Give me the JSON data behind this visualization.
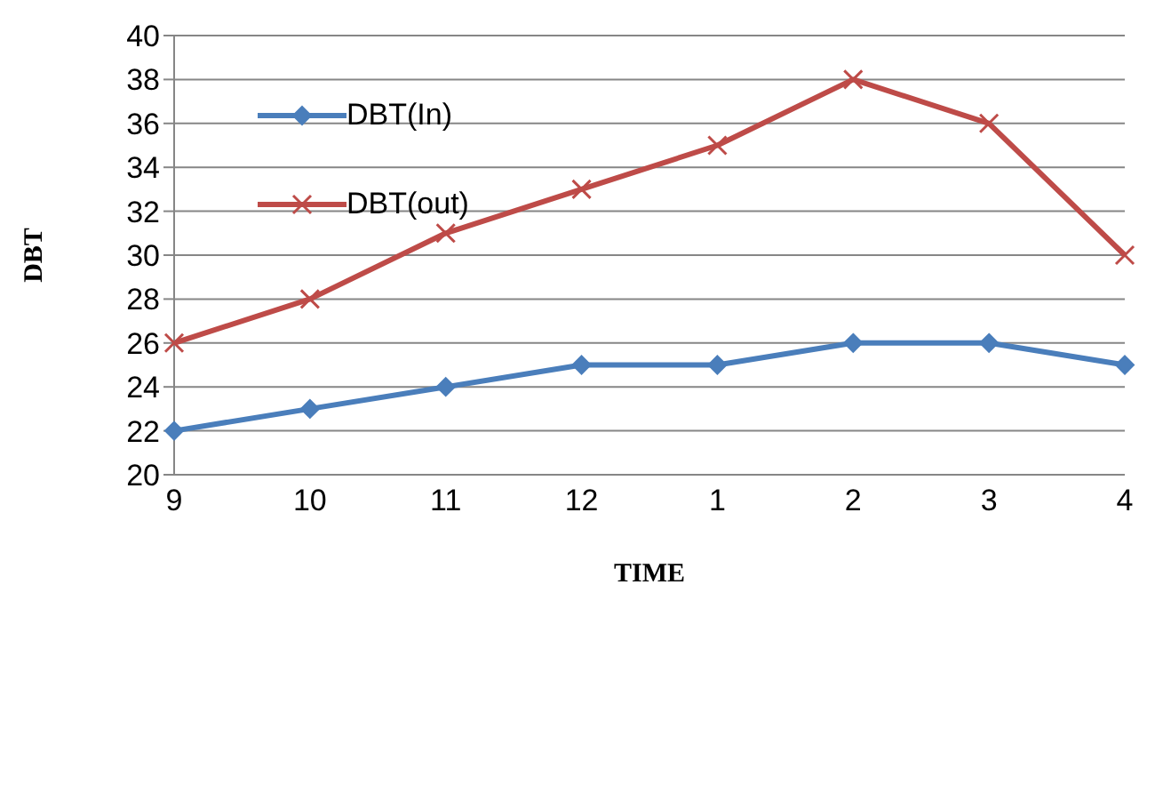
{
  "chart_data": {
    "type": "line",
    "xlabel": "TIME",
    "ylabel": "DBT",
    "categories": [
      "9",
      "10",
      "11",
      "12",
      "1",
      "2",
      "3",
      "4"
    ],
    "series": [
      {
        "name": "DBT(In)",
        "color": "#4a7ebb",
        "marker": "diamond",
        "values": [
          22,
          23,
          24,
          25,
          25,
          26,
          26,
          25
        ]
      },
      {
        "name": "DBT(out)",
        "color": "#be4b48",
        "marker": "cross",
        "values": [
          26,
          28,
          31,
          33,
          35,
          38,
          36,
          30
        ]
      }
    ],
    "ylim": [
      20,
      40
    ],
    "yticks": [
      20,
      22,
      24,
      26,
      28,
      30,
      32,
      34,
      36,
      38,
      40
    ],
    "grid": "y",
    "legend": "top left",
    "line_style": "solid"
  }
}
